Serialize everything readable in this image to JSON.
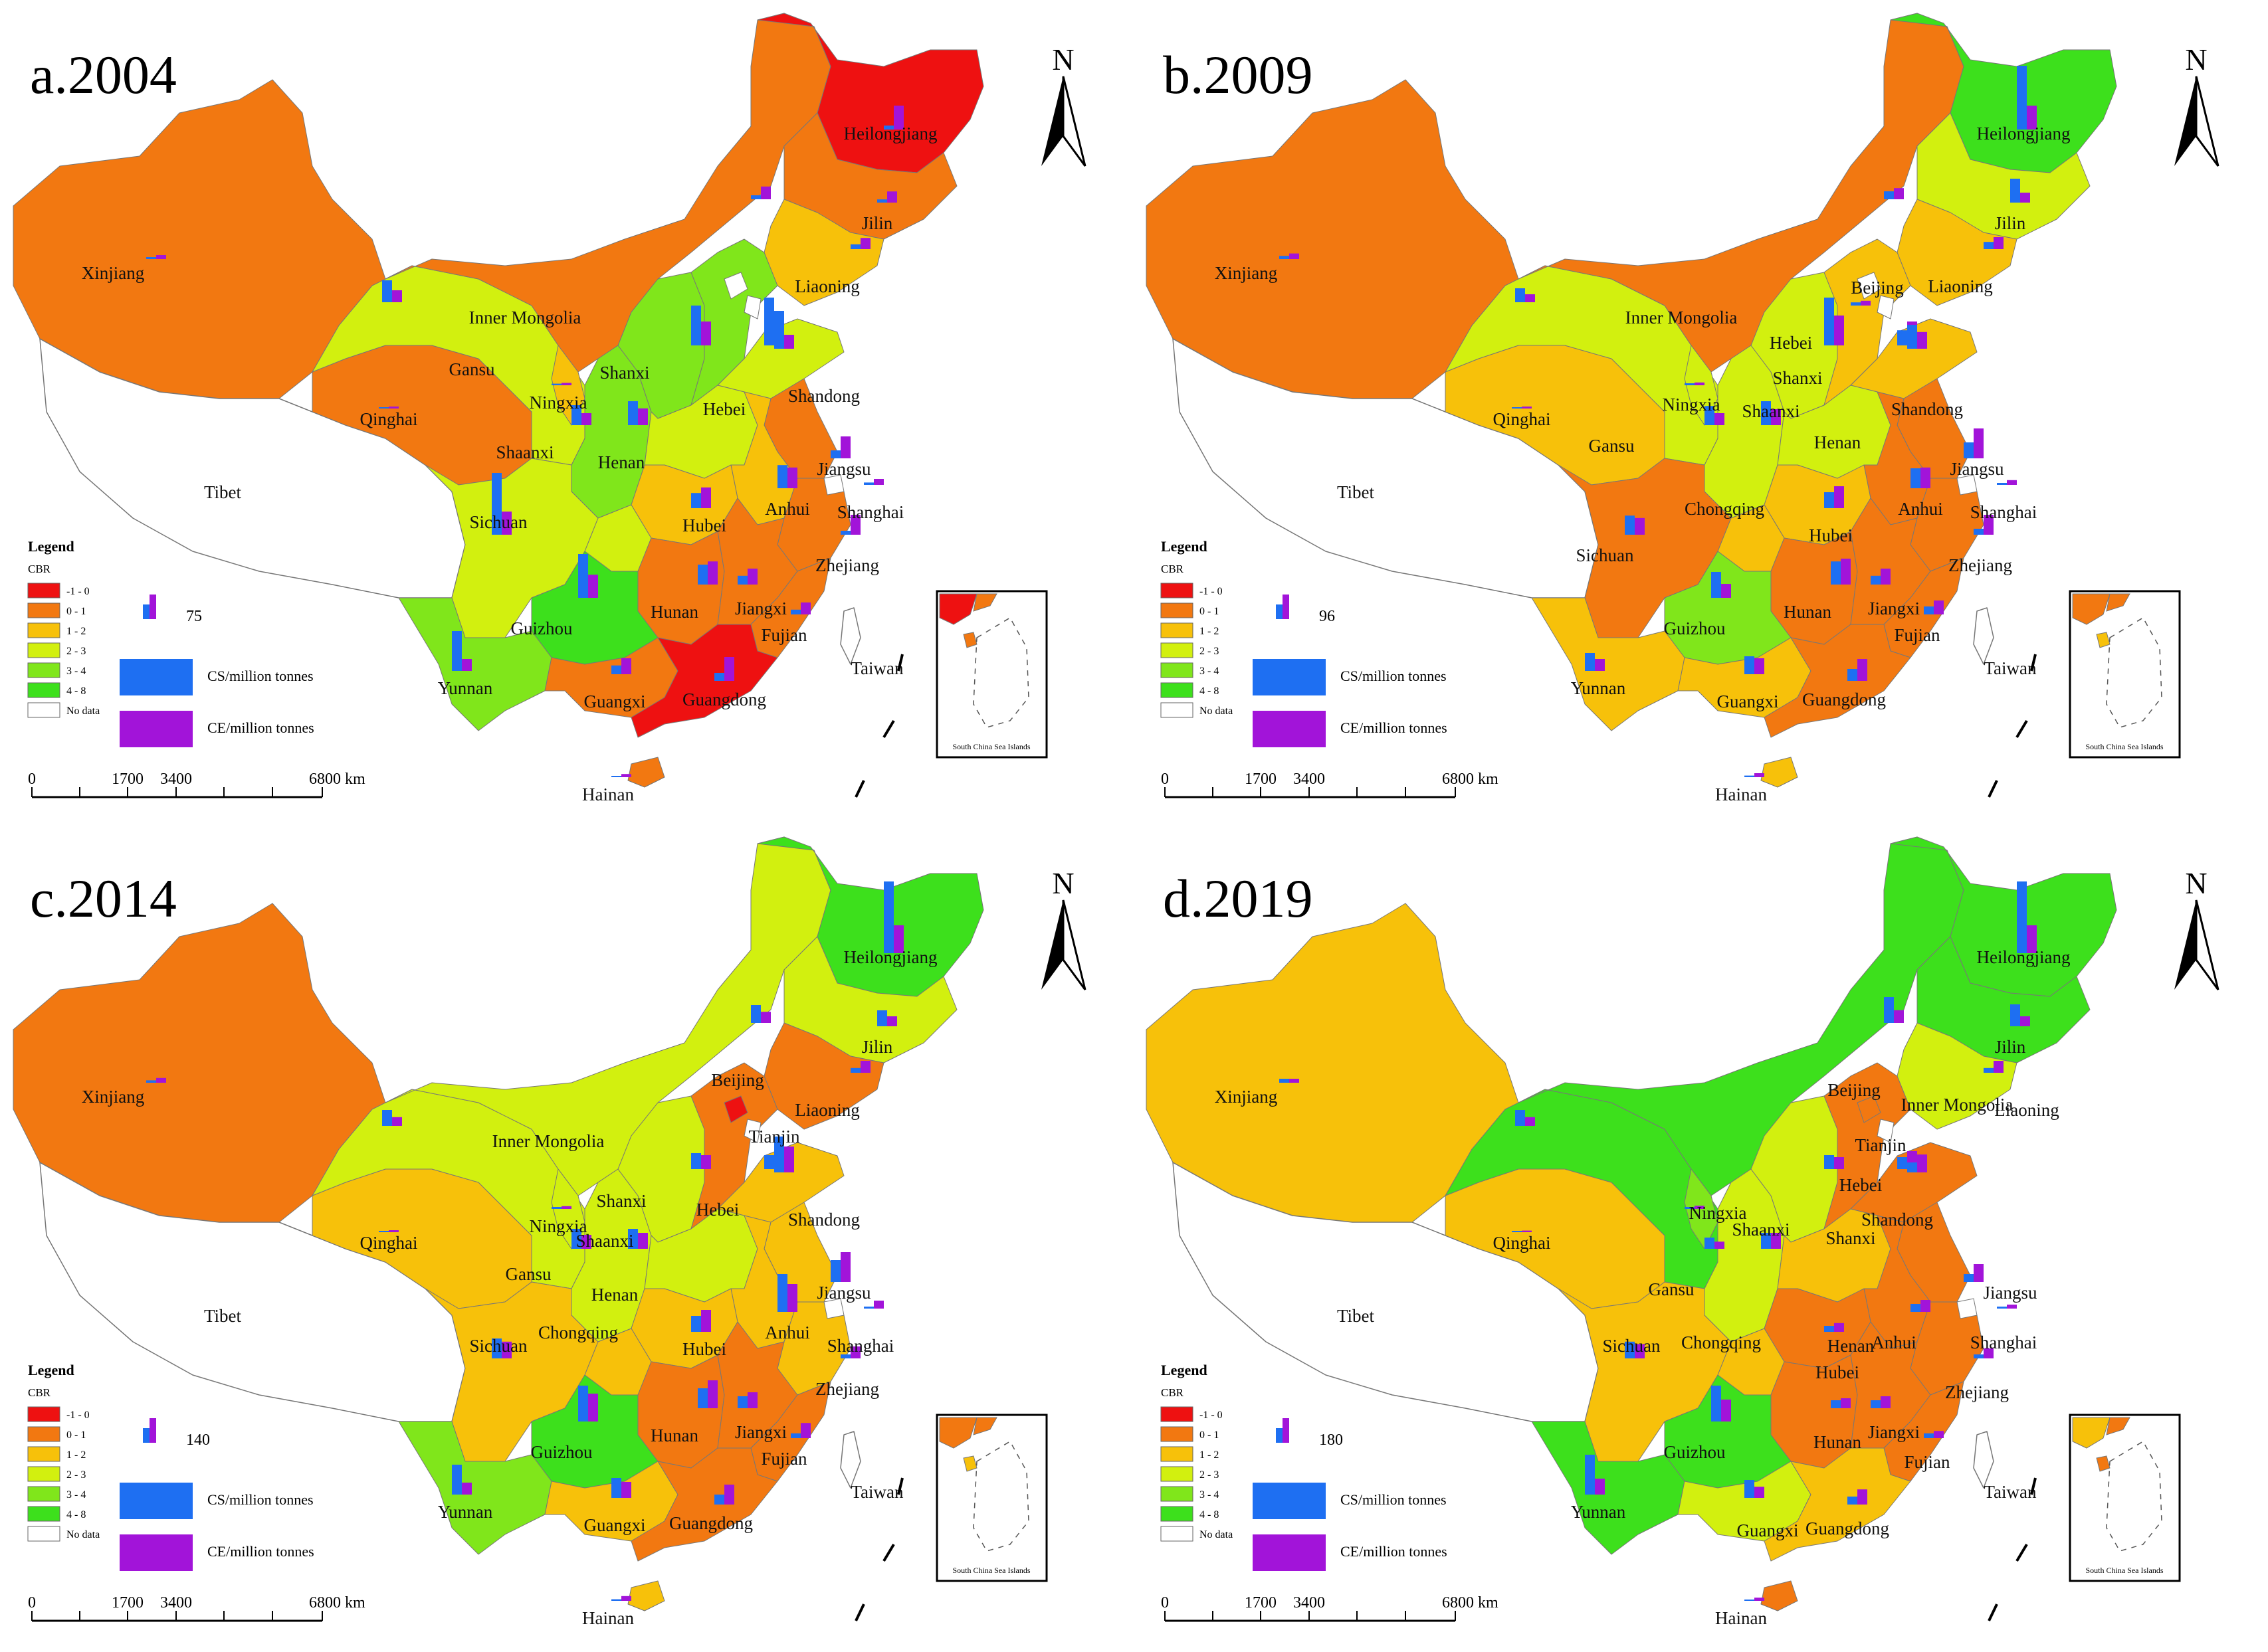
{
  "colors": {
    "c_neg1_0": "#ee1111",
    "c_0_1": "#f27811",
    "c_1_2": "#f7c10a",
    "c_2_3": "#d2f00f",
    "c_3_4": "#80e61b",
    "c_4_8": "#3de01c",
    "nodata": "#ffffff",
    "cs": "#1e6ff2",
    "ce": "#a214d9",
    "border": "#777777"
  },
  "legend_text": {
    "title": "Legend",
    "subtitle": "CBR",
    "classes": [
      "-1 - 0",
      "0 - 1",
      "1 - 2",
      "2 - 3",
      "3 - 4",
      "4 - 8",
      "No data"
    ],
    "cs_label": "CS/million tonnes",
    "ce_label": "CE/million tonnes"
  },
  "north_label": "N",
  "scale_labels": [
    "0",
    "1700",
    "3400",
    "6800 km"
  ],
  "inset_label": "South China Sea Islands",
  "panels": [
    {
      "title": "a.2004",
      "ref_value": "75",
      "label_names": [
        "Heilongjiang",
        "Jilin",
        "Liaoning",
        "Inner Mongolia",
        "Xinjiang",
        "Gansu",
        "Qinghai",
        "Ningxia",
        "Shanxi",
        "Hebei",
        "Shandong",
        "Shaanxi",
        "Henan",
        "Tibet",
        "Jiangsu",
        "Shanghai",
        "Anhui",
        "Hubei",
        "Sichuan",
        "Zhejiang",
        "Hunan",
        "Jiangxi",
        "Guizhou",
        "Fujian",
        "Taiwan",
        "Yunnan",
        "Guangxi",
        "Guangdong",
        "Hainan"
      ],
      "classes": {
        "Xinjiang": 1,
        "Tibet": 6,
        "Qinghai": 1,
        "Gansu": 3,
        "InnerMongolia": 1,
        "Heilongjiang": 0,
        "Jilin": 1,
        "Liaoning": 2,
        "Ningxia": 2,
        "Shaanxi": 4,
        "Shanxi": 4,
        "Hebei": 4,
        "Shandong": 3,
        "Henan": 3,
        "Sichuan": 3,
        "Chongqing": 3,
        "Hubei": 2,
        "Anhui": 2,
        "Jiangsu": 1,
        "Zhejiang": 1,
        "Hunan": 1,
        "Jiangxi": 1,
        "Fujian": 1,
        "Guizhou": 5,
        "Yunnan": 4,
        "Guangxi": 1,
        "Guangdong": 0,
        "Hainan": 1,
        "Taiwan": 6
      },
      "bars": [
        {
          "name": "Heilongjiang",
          "cs": 10,
          "ce": 60
        },
        {
          "name": "Jilin",
          "cs": 8,
          "ce": 28
        },
        {
          "name": "InnerMongolia",
          "cs": 10,
          "ce": 32
        },
        {
          "name": "Liaoning",
          "cs": 12,
          "ce": 28
        },
        {
          "name": "Xinjiang",
          "cs": 5,
          "ce": 10
        },
        {
          "name": "Gansu",
          "cs": 55,
          "ce": 30
        },
        {
          "name": "Qinghai",
          "cs": 2,
          "ce": 5
        },
        {
          "name": "Ningxia",
          "cs": 4,
          "ce": 6
        },
        {
          "name": "Shanxi",
          "cs": 100,
          "ce": 60
        },
        {
          "name": "Hebei",
          "cs": 120,
          "ce": 85
        },
        {
          "name": "Shandong",
          "cs": 95,
          "ce": 35
        },
        {
          "name": "Shaanxi",
          "cs": 50,
          "ce": 30
        },
        {
          "name": "Henan",
          "cs": 60,
          "ce": 42
        },
        {
          "name": "Jiangsu",
          "cs": 20,
          "ce": 55
        },
        {
          "name": "Shanghai",
          "cs": 6,
          "ce": 15
        },
        {
          "name": "Anhui",
          "cs": 58,
          "ce": 52
        },
        {
          "name": "Hubei",
          "cs": 38,
          "ce": 52
        },
        {
          "name": "Sichuan",
          "cs": 155,
          "ce": 58
        },
        {
          "name": "Zhejiang",
          "cs": 10,
          "ce": 50
        },
        {
          "name": "Hunan",
          "cs": 50,
          "ce": 58
        },
        {
          "name": "Jiangxi",
          "cs": 22,
          "ce": 40
        },
        {
          "name": "Guizhou",
          "cs": 110,
          "ce": 58
        },
        {
          "name": "Fujian",
          "cs": 12,
          "ce": 30
        },
        {
          "name": "Yunnan",
          "cs": 100,
          "ce": 30
        },
        {
          "name": "Guangxi",
          "cs": 22,
          "ce": 40
        },
        {
          "name": "Guangdong",
          "cs": 20,
          "ce": 60
        },
        {
          "name": "Hainan",
          "cs": 3,
          "ce": 8
        }
      ]
    },
    {
      "title": "b.2009",
      "ref_value": "96",
      "label_names": [
        "Heilongjiang",
        "Jilin",
        "Liaoning",
        "Beijing",
        "Inner Mongolia",
        "Xinjiang",
        "Hebei",
        "Shanxi",
        "Shandong",
        "Qinghai",
        "Ningxia",
        "Shaanxi",
        "Gansu",
        "Henan",
        "Tibet",
        "Jiangsu",
        "Shanghai",
        "Chongqing",
        "Anhui",
        "Sichuan",
        "Hubei",
        "Zhejiang",
        "Hunan",
        "Jiangxi",
        "Guizhou",
        "Fujian",
        "Taiwan",
        "Yunnan",
        "Guangxi",
        "Guangdong",
        "Hainan"
      ],
      "classes": {
        "Xinjiang": 1,
        "Tibet": 6,
        "Qinghai": 2,
        "Gansu": 3,
        "InnerMongolia": 1,
        "Heilongjiang": 5,
        "Jilin": 3,
        "Liaoning": 2,
        "Ningxia": 3,
        "Shaanxi": 3,
        "Shanxi": 3,
        "Hebei": 2,
        "Shandong": 2,
        "Henan": 3,
        "Sichuan": 1,
        "Chongqing": 2,
        "Hubei": 2,
        "Anhui": 1,
        "Jiangsu": 1,
        "Zhejiang": 1,
        "Hunan": 1,
        "Jiangxi": 1,
        "Fujian": 1,
        "Guizhou": 4,
        "Yunnan": 2,
        "Guangxi": 2,
        "Guangdong": 1,
        "Hainan": 2,
        "Taiwan": 6
      },
      "bars": [
        {
          "name": "Heilongjiang",
          "cs": 160,
          "ce": 60
        },
        {
          "name": "Jilin",
          "cs": 60,
          "ce": 25
        },
        {
          "name": "InnerMongolia",
          "cs": 20,
          "ce": 28
        },
        {
          "name": "Liaoning",
          "cs": 18,
          "ce": 30
        },
        {
          "name": "Beijing",
          "cs": 8,
          "ce": 12
        },
        {
          "name": "Xinjiang",
          "cs": 8,
          "ce": 14
        },
        {
          "name": "Gansu",
          "cs": 35,
          "ce": 20
        },
        {
          "name": "Qinghai",
          "cs": 2,
          "ce": 5
        },
        {
          "name": "Ningxia",
          "cs": 5,
          "ce": 7
        },
        {
          "name": "Hebei",
          "cs": 38,
          "ce": 60
        },
        {
          "name": "Shanxi",
          "cs": 120,
          "ce": 75
        },
        {
          "name": "Shandong",
          "cs": 60,
          "ce": 42
        },
        {
          "name": "Shaanxi",
          "cs": 48,
          "ce": 30
        },
        {
          "name": "Henan",
          "cs": 60,
          "ce": 40
        },
        {
          "name": "Jiangsu",
          "cs": 40,
          "ce": 75
        },
        {
          "name": "Shanghai",
          "cs": 5,
          "ce": 12
        },
        {
          "name": "Anhui",
          "cs": 50,
          "ce": 52
        },
        {
          "name": "Hubei",
          "cs": 40,
          "ce": 55
        },
        {
          "name": "Sichuan",
          "cs": 48,
          "ce": 42
        },
        {
          "name": "Zhejiang",
          "cs": 15,
          "ce": 50
        },
        {
          "name": "Hunan",
          "cs": 58,
          "ce": 65
        },
        {
          "name": "Jiangxi",
          "cs": 22,
          "ce": 40
        },
        {
          "name": "Guizhou",
          "cs": 65,
          "ce": 35
        },
        {
          "name": "Fujian",
          "cs": 20,
          "ce": 35
        },
        {
          "name": "Yunnan",
          "cs": 45,
          "ce": 30
        },
        {
          "name": "Guangxi",
          "cs": 45,
          "ce": 40
        },
        {
          "name": "Guangdong",
          "cs": 30,
          "ce": 55
        },
        {
          "name": "Hainan",
          "cs": 4,
          "ce": 10
        }
      ]
    },
    {
      "title": "c.2014",
      "ref_value": "140",
      "label_names": [
        "Heilongjiang",
        "Jilin",
        "Liaoning",
        "Xinjiang",
        "Beijing",
        "Inner Mongolia",
        "Tianjin",
        "Hebei",
        "Shanxi",
        "Shandong",
        "Qinghai",
        "Ningxia",
        "Shaanxi",
        "Gansu",
        "Henan",
        "Tibet",
        "Jiangsu",
        "Shanghai",
        "Chongqing",
        "Anhui",
        "Hubei",
        "Sichuan",
        "Zhejiang",
        "Hunan",
        "Jiangxi",
        "Guizhou",
        "Fujian",
        "Taiwan",
        "Yunnan",
        "Guangxi",
        "Guangdong",
        "Hainan"
      ],
      "classes": {
        "Xinjiang": 1,
        "Tibet": 6,
        "Qinghai": 2,
        "Gansu": 3,
        "InnerMongolia": 3,
        "Heilongjiang": 5,
        "Jilin": 3,
        "Liaoning": 1,
        "Ningxia": 3,
        "Shaanxi": 3,
        "Shanxi": 3,
        "Hebei": 1,
        "Beijing": 0,
        "Shandong": 2,
        "Henan": 3,
        "Sichuan": 2,
        "Chongqing": 2,
        "Hubei": 2,
        "Anhui": 2,
        "Jiangsu": 2,
        "Zhejiang": 2,
        "Hunan": 1,
        "Jiangxi": 1,
        "Fujian": 1,
        "Guizhou": 5,
        "Yunnan": 4,
        "Guangxi": 2,
        "Guangdong": 1,
        "Hainan": 2,
        "Taiwan": 6
      },
      "bars": [
        {
          "name": "Heilongjiang",
          "cs": 180,
          "ce": 70
        },
        {
          "name": "Jilin",
          "cs": 40,
          "ce": 25
        },
        {
          "name": "InnerMongolia",
          "cs": 45,
          "ce": 28
        },
        {
          "name": "Liaoning",
          "cs": 12,
          "ce": 30
        },
        {
          "name": "Xinjiang",
          "cs": 6,
          "ce": 12
        },
        {
          "name": "Gansu",
          "cs": 40,
          "ce": 22
        },
        {
          "name": "Qinghai",
          "cs": 2,
          "ce": 5
        },
        {
          "name": "Ningxia",
          "cs": 5,
          "ce": 7
        },
        {
          "name": "Hebei",
          "cs": 35,
          "ce": 50
        },
        {
          "name": "Shanxi",
          "cs": 40,
          "ce": 35
        },
        {
          "name": "Shandong",
          "cs": 90,
          "ce": 65
        },
        {
          "name": "Shaanxi",
          "cs": 50,
          "ce": 35
        },
        {
          "name": "Henan",
          "cs": 50,
          "ce": 40
        },
        {
          "name": "Jiangsu",
          "cs": 55,
          "ce": 75
        },
        {
          "name": "Shanghai",
          "cs": 5,
          "ce": 20
        },
        {
          "name": "Anhui",
          "cs": 95,
          "ce": 70
        },
        {
          "name": "Hubei",
          "cs": 40,
          "ce": 55
        },
        {
          "name": "Sichuan",
          "cs": 50,
          "ce": 42
        },
        {
          "name": "Zhejiang",
          "cs": 10,
          "ce": 30
        },
        {
          "name": "Hunan",
          "cs": 50,
          "ce": 70
        },
        {
          "name": "Jiangxi",
          "cs": 30,
          "ce": 40
        },
        {
          "name": "Guizhou",
          "cs": 90,
          "ce": 70
        },
        {
          "name": "Fujian",
          "cs": 12,
          "ce": 38
        },
        {
          "name": "Yunnan",
          "cs": 75,
          "ce": 30
        },
        {
          "name": "Guangxi",
          "cs": 50,
          "ce": 40
        },
        {
          "name": "Guangdong",
          "cs": 25,
          "ce": 50
        },
        {
          "name": "Hainan",
          "cs": 4,
          "ce": 12
        }
      ]
    },
    {
      "title": "d.2019",
      "ref_value": "180",
      "label_names": [
        "Heilongjiang",
        "Inner Mongolia",
        "Jilin",
        "Xinjiang",
        "Beijing",
        "Liaoning",
        "Tianjin",
        "Hebei",
        "Ningxia",
        "Qinghai",
        "Shanxi",
        "Shandong",
        "Shaanxi",
        "Gansu",
        "Henan",
        "Tibet",
        "Jiangsu",
        "Chongqing",
        "Anhui",
        "Shanghai",
        "Hubei",
        "Sichuan",
        "Zhejiang",
        "Hunan",
        "Jiangxi",
        "Guizhou",
        "Fujian",
        "Taiwan",
        "Yunnan",
        "Guangxi",
        "Guangdong",
        "Hainan"
      ],
      "classes": {
        "Xinjiang": 2,
        "Tibet": 6,
        "Qinghai": 2,
        "Gansu": 5,
        "InnerMongolia": 5,
        "Heilongjiang": 5,
        "Jilin": 5,
        "Liaoning": 3,
        "Ningxia": 4,
        "Shaanxi": 3,
        "Shanxi": 3,
        "Hebei": 1,
        "Beijing": 1,
        "Shandong": 1,
        "Henan": 2,
        "Sichuan": 2,
        "Chongqing": 2,
        "Hubei": 1,
        "Anhui": 1,
        "Jiangsu": 1,
        "Zhejiang": 1,
        "Hunan": 1,
        "Jiangxi": 1,
        "Fujian": 1,
        "Guizhou": 5,
        "Yunnan": 5,
        "Guangxi": 3,
        "Guangdong": 2,
        "Hainan": 1,
        "Taiwan": 6
      },
      "bars": [
        {
          "name": "Heilongjiang",
          "cs": 180,
          "ce": 70
        },
        {
          "name": "Jilin",
          "cs": 55,
          "ce": 25
        },
        {
          "name": "InnerMongolia",
          "cs": 65,
          "ce": 32
        },
        {
          "name": "Liaoning",
          "cs": 12,
          "ce": 30
        },
        {
          "name": "Xinjiang",
          "cs": 10,
          "ce": 10
        },
        {
          "name": "Gansu",
          "cs": 40,
          "ce": 22
        },
        {
          "name": "Qinghai",
          "cs": 2,
          "ce": 4
        },
        {
          "name": "Ningxia",
          "cs": 5,
          "ce": 8
        },
        {
          "name": "Hebei",
          "cs": 30,
          "ce": 45
        },
        {
          "name": "Shanxi",
          "cs": 35,
          "ce": 30
        },
        {
          "name": "Shandong",
          "cs": 25,
          "ce": 45
        },
        {
          "name": "Shaanxi",
          "cs": 28,
          "ce": 18
        },
        {
          "name": "Henan",
          "cs": 40,
          "ce": 40
        },
        {
          "name": "Jiangsu",
          "cs": 20,
          "ce": 45
        },
        {
          "name": "Shanghai",
          "cs": 5,
          "ce": 10
        },
        {
          "name": "Anhui",
          "cs": 20,
          "ce": 30
        },
        {
          "name": "Hubei",
          "cs": 15,
          "ce": 22
        },
        {
          "name": "Sichuan",
          "cs": 42,
          "ce": 36
        },
        {
          "name": "Zhejiang",
          "cs": 10,
          "ce": 25
        },
        {
          "name": "Hunan",
          "cs": 20,
          "ce": 25
        },
        {
          "name": "Jiangxi",
          "cs": 20,
          "ce": 30
        },
        {
          "name": "Guizhou",
          "cs": 90,
          "ce": 55
        },
        {
          "name": "Fujian",
          "cs": 12,
          "ce": 18
        },
        {
          "name": "Yunnan",
          "cs": 100,
          "ce": 40
        },
        {
          "name": "Guangxi",
          "cs": 45,
          "ce": 28
        },
        {
          "name": "Guangdong",
          "cs": 20,
          "ce": 38
        },
        {
          "name": "Hainan",
          "cs": 3,
          "ce": 8
        }
      ]
    }
  ]
}
